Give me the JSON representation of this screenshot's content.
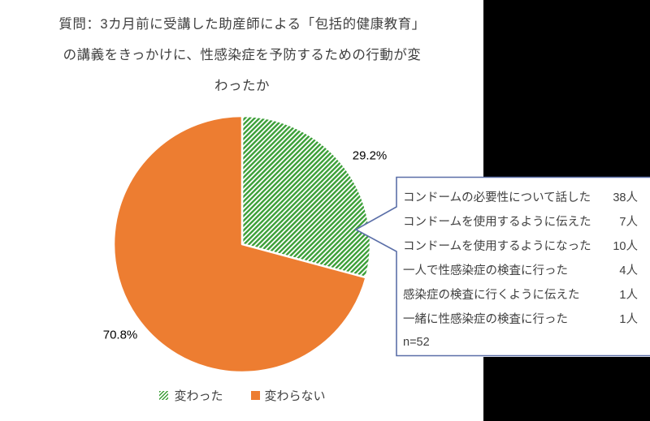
{
  "title": {
    "lines": [
      "質問：3カ月前に受講した助産師による「包括的健康教育」",
      "の講義をきっかけに、性感染症を予防するための行動が変",
      "わったか"
    ]
  },
  "chart_data": {
    "type": "pie",
    "title": "質問：3カ月前に受講した助産師による「包括的健康教育」の講義をきっかけに、性感染症を予防するための行動が変わったか",
    "n": 52,
    "legend_position": "bottom",
    "slices": [
      {
        "label": "変わった",
        "pct": 29.2,
        "display": "29.2%",
        "fill": "hatched-green"
      },
      {
        "label": "変わらない",
        "pct": 70.8,
        "display": "70.8%",
        "fill": "#ed7d31"
      }
    ],
    "annotation_breakdown": [
      {
        "label": "コンドームの必要性について話した",
        "value": 38,
        "display": "38人"
      },
      {
        "label": "コンドームを使用するように伝えた",
        "value": 7,
        "display": "7人"
      },
      {
        "label": "コンドームを使用するようになった",
        "value": 10,
        "display": "10人"
      },
      {
        "label": "一人で性感染症の検査に行った",
        "value": 4,
        "display": "4人"
      },
      {
        "label": "感染症の検査に行くように伝えた",
        "value": 1,
        "display": "1人"
      },
      {
        "label": "一緒に性感染症の検査に行った",
        "value": 1,
        "display": "1人"
      }
    ]
  },
  "callout": {
    "rows": [
      {
        "label": "コンドームの必要性について話した",
        "value": "38人"
      },
      {
        "label": "コンドームを使用するように伝えた",
        "value": "7人"
      },
      {
        "label": "コンドームを使用するようになった",
        "value": "10人"
      },
      {
        "label": "一人で性感染症の検査に行った",
        "value": "4人"
      },
      {
        "label": "感染症の検査に行くように伝えた",
        "value": "1人"
      },
      {
        "label": "一緒に性感染症の検査に行った",
        "value": "1人"
      }
    ],
    "footer": "n=52"
  },
  "legend": {
    "items": [
      {
        "label": "変わった",
        "swatch": "hatch-green"
      },
      {
        "label": "変わらない",
        "swatch": "#ed7d31"
      }
    ]
  },
  "colors": {
    "orange": "#ed7d31",
    "hatch_green": "#3c9f38",
    "callout_border": "#5b6fa8",
    "title_text": "#3f3f3f",
    "black_mask": "#000000"
  }
}
